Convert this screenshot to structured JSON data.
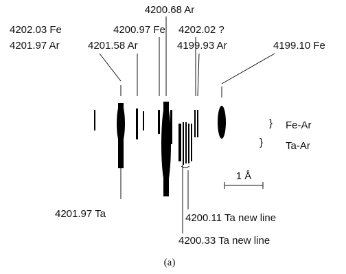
{
  "labels": {
    "top": "4200.68 Ar",
    "left_fe": "4202.03 Fe",
    "left_ar": "4201.97 Ar",
    "mid_fe": "4200.97 Fe",
    "mid_ar": "4201.58 Ar",
    "right_q": "4202.02 ?",
    "right_ar": "4199.93 Ar",
    "far_fe": "4199.10 Fe",
    "ta_left": "4201.97 Ta",
    "ta_new1": "4200.11 Ta new line",
    "ta_new2": "4200.33 Ta new line"
  },
  "legend": {
    "fe_ar": "Fe-Ar",
    "ta_ar": "Ta-Ar",
    "scale": "1 Å"
  },
  "caption": "(a)"
}
